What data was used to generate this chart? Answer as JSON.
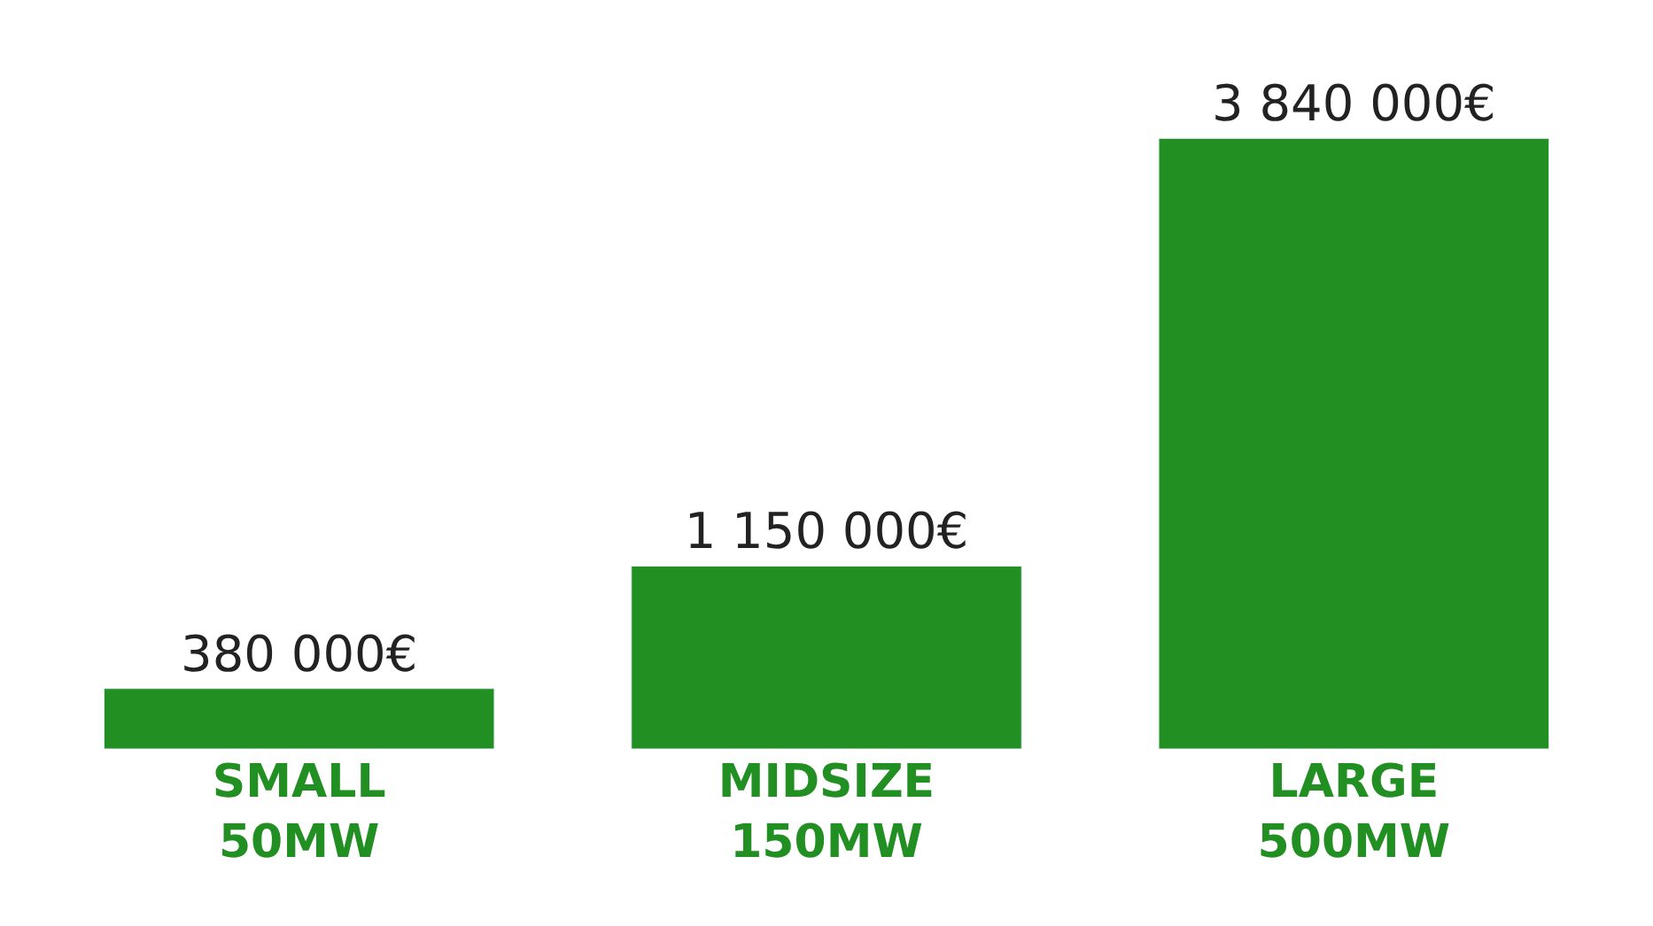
{
  "chart_data": {
    "type": "bar",
    "categories": [
      "SMALL\n50MW",
      "MIDSIZE\n150MW",
      "LARGE\n500MW"
    ],
    "values": [
      380000,
      1150000,
      3840000
    ],
    "value_labels": [
      "380 000€",
      "1 150 000€",
      "3 840 000€"
    ],
    "color": "#218f21",
    "legend": false,
    "tick_labels": "x"
  }
}
